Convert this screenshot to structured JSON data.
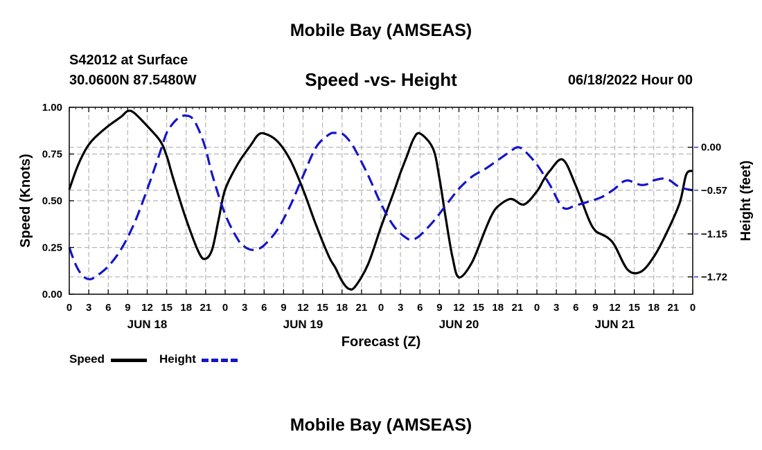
{
  "header": {
    "title": "Mobile Bay (AMSEAS)",
    "station": "S42012 at Surface",
    "coords": "30.0600N  87.5480W",
    "subtitle": "Speed -vs- Height",
    "run_time": "06/18/2022 Hour 00"
  },
  "footer": {
    "title": "Mobile Bay (AMSEAS)"
  },
  "legend": {
    "speed_label": "Speed",
    "height_label": "Height"
  },
  "colors": {
    "speed": "#000000",
    "height": "#1515c8",
    "grid": "#b4b4b4"
  },
  "chart_data": {
    "type": "line",
    "xlabel": "Forecast (Z)",
    "ylabel_left": "Speed (Knots)",
    "ylabel_right": "Height (feet)",
    "x_hours_range": [
      0,
      96
    ],
    "x_tick_labels": [
      "0",
      "3",
      "6",
      "9",
      "12",
      "15",
      "18",
      "21",
      "0",
      "3",
      "6",
      "9",
      "12",
      "15",
      "18",
      "21",
      "0",
      "3",
      "6",
      "9",
      "12",
      "15",
      "18",
      "21",
      "0",
      "3",
      "6",
      "9",
      "12",
      "15",
      "18",
      "21",
      "0"
    ],
    "day_labels": [
      {
        "label": "JUN 18",
        "hour": 12
      },
      {
        "label": "JUN 19",
        "hour": 36
      },
      {
        "label": "JUN 20",
        "hour": 60
      },
      {
        "label": "JUN 21",
        "hour": 84
      }
    ],
    "ylim_left": [
      0,
      1
    ],
    "y_ticks_left": [
      {
        "value": 0.0,
        "label": "0.00"
      },
      {
        "value": 0.25,
        "label": "0.25"
      },
      {
        "value": 0.5,
        "label": "0.50"
      },
      {
        "value": 0.75,
        "label": "0.75"
      },
      {
        "value": 1.0,
        "label": "1.00"
      }
    ],
    "ylim_right": [
      -1.95,
      0.53
    ],
    "y_ticks_right": [
      {
        "value": 0.0,
        "label": "0.00"
      },
      {
        "value": -0.57,
        "label": "−0.57"
      },
      {
        "value": -1.15,
        "label": "−1.15"
      },
      {
        "value": -1.72,
        "label": "−1.72"
      }
    ],
    "grid": true,
    "series": [
      {
        "name": "Speed",
        "axis": "left",
        "style": "solid",
        "x": [
          0,
          1,
          2,
          3,
          4,
          6,
          8,
          9,
          10,
          12,
          14,
          15,
          16,
          18,
          20,
          21,
          22,
          23,
          24,
          26,
          28,
          29,
          30,
          32,
          34,
          36,
          38,
          40,
          41,
          42,
          43,
          44,
          46,
          48,
          50,
          51,
          52,
          53,
          54,
          56,
          57,
          58,
          59,
          60,
          62,
          64,
          65,
          66,
          68,
          70,
          72,
          73,
          74,
          76,
          78,
          80,
          81,
          82,
          83,
          84,
          86,
          88,
          90,
          92,
          94,
          95,
          96
        ],
        "y": [
          0.56,
          0.66,
          0.74,
          0.8,
          0.84,
          0.9,
          0.95,
          0.98,
          0.97,
          0.9,
          0.82,
          0.74,
          0.62,
          0.4,
          0.22,
          0.19,
          0.24,
          0.4,
          0.56,
          0.7,
          0.8,
          0.85,
          0.86,
          0.82,
          0.72,
          0.56,
          0.37,
          0.2,
          0.14,
          0.07,
          0.03,
          0.04,
          0.16,
          0.36,
          0.55,
          0.65,
          0.74,
          0.83,
          0.86,
          0.78,
          0.62,
          0.4,
          0.2,
          0.09,
          0.17,
          0.34,
          0.42,
          0.47,
          0.51,
          0.48,
          0.55,
          0.61,
          0.66,
          0.72,
          0.58,
          0.4,
          0.34,
          0.32,
          0.3,
          0.26,
          0.13,
          0.12,
          0.2,
          0.33,
          0.49,
          0.64,
          0.66
        ]
      },
      {
        "name": "Height",
        "axis": "right",
        "style": "dashed",
        "x": [
          0,
          1,
          2,
          3,
          4,
          6,
          8,
          10,
          12,
          14,
          15,
          16,
          17,
          18,
          19,
          20,
          21,
          22,
          24,
          26,
          27,
          28,
          29,
          30,
          32,
          34,
          36,
          38,
          40,
          41,
          42,
          43,
          44,
          46,
          48,
          50,
          52,
          53,
          54,
          56,
          58,
          60,
          62,
          64,
          66,
          68,
          69,
          70,
          72,
          74,
          76,
          78,
          80,
          82,
          84,
          85,
          86,
          87,
          88,
          89,
          90,
          92,
          94,
          96
        ],
        "y": [
          -1.33,
          -1.56,
          -1.7,
          -1.75,
          -1.72,
          -1.58,
          -1.35,
          -1.01,
          -0.56,
          -0.06,
          0.19,
          0.32,
          0.4,
          0.42,
          0.38,
          0.22,
          -0.02,
          -0.36,
          -0.89,
          -1.23,
          -1.32,
          -1.36,
          -1.35,
          -1.3,
          -1.1,
          -0.78,
          -0.38,
          0.0,
          0.17,
          0.19,
          0.18,
          0.1,
          -0.03,
          -0.37,
          -0.75,
          -1.05,
          -1.21,
          -1.22,
          -1.17,
          -0.99,
          -0.77,
          -0.55,
          -0.39,
          -0.29,
          -0.17,
          -0.05,
          0.0,
          -0.04,
          -0.23,
          -0.5,
          -0.8,
          -0.77,
          -0.72,
          -0.66,
          -0.55,
          -0.47,
          -0.44,
          -0.47,
          -0.5,
          -0.49,
          -0.44,
          -0.42,
          -0.53,
          -0.57
        ]
      }
    ]
  }
}
